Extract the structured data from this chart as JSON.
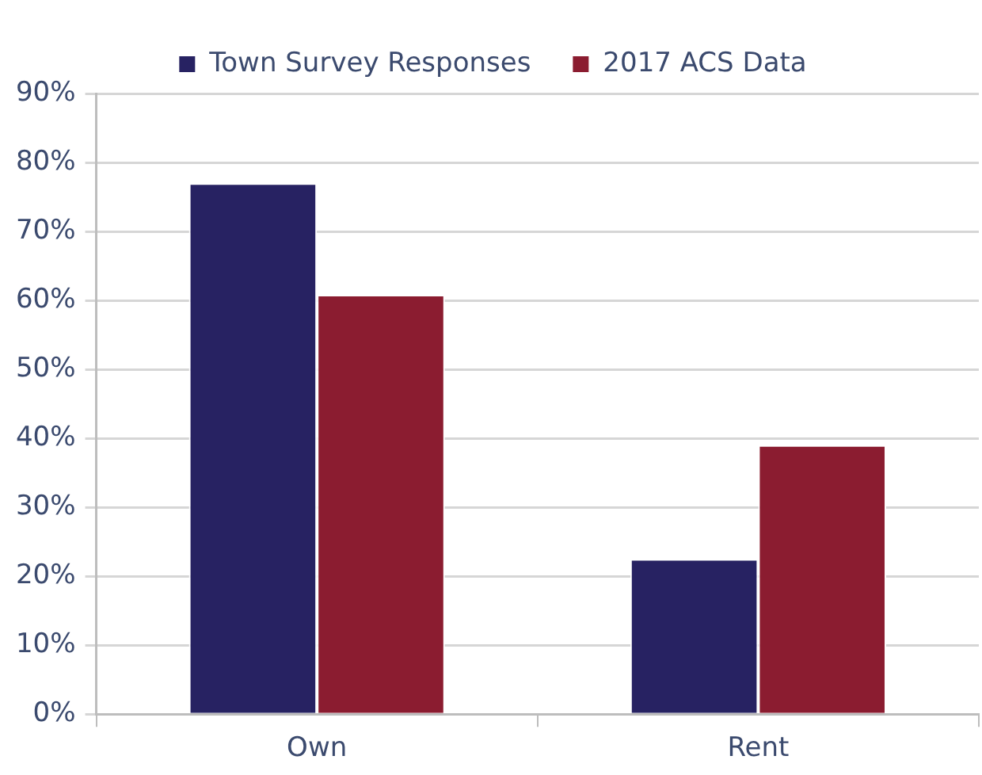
{
  "chart_data": {
    "type": "bar",
    "categories": [
      "Own",
      "Rent"
    ],
    "series": [
      {
        "name": "Town Survey Responses",
        "color": "#272262",
        "values": [
          77,
          22.5
        ]
      },
      {
        "name": "2017 ACS Data",
        "color": "#8b1c30",
        "values": [
          60.8,
          39
        ]
      }
    ],
    "ylim": [
      0,
      90
    ],
    "yticks": [
      {
        "value": 0,
        "label": "0%"
      },
      {
        "value": 10,
        "label": "10%"
      },
      {
        "value": 20,
        "label": "20%"
      },
      {
        "value": 30,
        "label": "30%"
      },
      {
        "value": 40,
        "label": "40%"
      },
      {
        "value": 50,
        "label": "50%"
      },
      {
        "value": 60,
        "label": "60%"
      },
      {
        "value": 70,
        "label": "70%"
      },
      {
        "value": 80,
        "label": "80%"
      },
      {
        "value": 90,
        "label": "90%"
      }
    ],
    "grid": "y",
    "legend": "top"
  }
}
